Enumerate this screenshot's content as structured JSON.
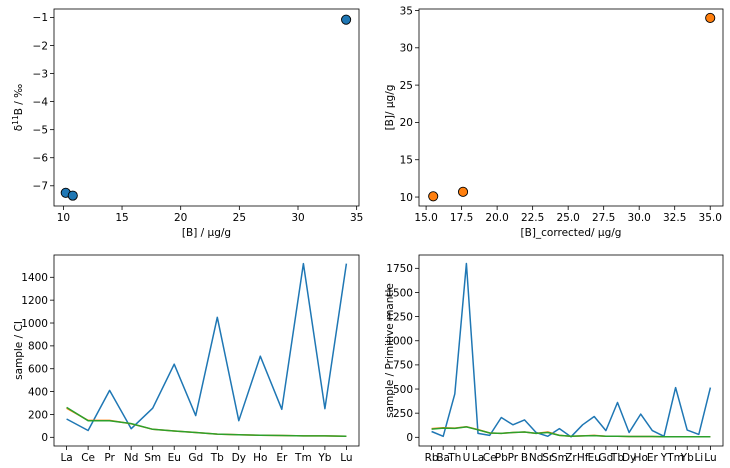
{
  "chart_data": [
    {
      "type": "scatter",
      "title": "",
      "xlabel": "[B] / μg/g",
      "ylabel": "δ11B / ‰",
      "ylabel_parts": [
        "δ",
        "11",
        "B / ‰"
      ],
      "xlim": [
        9.2,
        35.2
      ],
      "ylim": [
        -7.72,
        -0.7
      ],
      "xticks": [
        10,
        15,
        20,
        25,
        30,
        35
      ],
      "yticks": [
        -7,
        -6,
        -5,
        -4,
        -3,
        -2,
        -1
      ],
      "grid": false,
      "colors": {
        "marker": "#1f77b4"
      },
      "series": [
        {
          "x": [
            10.2,
            10.8,
            34.1
          ],
          "y": [
            -7.25,
            -7.35,
            -1.08
          ]
        }
      ]
    },
    {
      "type": "scatter",
      "title": "",
      "xlabel": "[B]_corrected/ μg/g",
      "ylabel": "[B]/ μg/g",
      "xlim": [
        14.5,
        35.9
      ],
      "ylim": [
        8.8,
        35.2
      ],
      "xticks": [
        15.0,
        17.5,
        20.0,
        22.5,
        25.0,
        27.5,
        30.0,
        32.5,
        35.0
      ],
      "yticks": [
        10,
        15,
        20,
        25,
        30,
        35
      ],
      "grid": false,
      "colors": {
        "marker": "#ff7f0e"
      },
      "series": [
        {
          "x": [
            15.5,
            17.6,
            35.0
          ],
          "y": [
            10.1,
            10.7,
            34.0
          ]
        }
      ]
    },
    {
      "type": "line",
      "title": "",
      "xlabel": "",
      "ylabel": "sample / CI",
      "categories": [
        "La",
        "Ce",
        "Pr",
        "Nd",
        "Sm",
        "Eu",
        "Gd",
        "Tb",
        "Dy",
        "Ho",
        "Er",
        "Tm",
        "Yb",
        "Lu"
      ],
      "ylim": [
        -76,
        1595
      ],
      "yticks": [
        0,
        200,
        400,
        600,
        800,
        1000,
        1200,
        1400
      ],
      "grid": false,
      "series": [
        {
          "color": "#1f77b4",
          "values": [
            160,
            60,
            410,
            75,
            255,
            640,
            190,
            1050,
            145,
            710,
            245,
            1520,
            250,
            1520
          ]
        },
        {
          "color": "#ff7f0e",
          "values": [
            255,
            148,
            148,
            118,
            70,
            55,
            42,
            28,
            22,
            18,
            16,
            12,
            12,
            10
          ]
        },
        {
          "color": "#2ca02c",
          "values": [
            262,
            145,
            145,
            120,
            70,
            55,
            42,
            28,
            22,
            18,
            16,
            12,
            12,
            10
          ]
        }
      ]
    },
    {
      "type": "line",
      "title": "",
      "xlabel": "",
      "ylabel": "sample / Primitive mantle",
      "categories": [
        "Rb",
        "Ba",
        "Th",
        "U",
        "La",
        "Ce",
        "Pb",
        "Pr",
        "B",
        "Nd",
        "Sr",
        "Sm",
        "Zr",
        "Hf",
        "Eu",
        "Gd",
        "Tb",
        "Dy",
        "Ho",
        "Er",
        "Y",
        "Tm",
        "Yb",
        "Li",
        "Lu"
      ],
      "ylim": [
        -90,
        1888
      ],
      "yticks": [
        0,
        250,
        500,
        750,
        1000,
        1250,
        1500,
        1750
      ],
      "grid": false,
      "series": [
        {
          "color": "#1f77b4",
          "values": [
            60,
            10,
            450,
            1800,
            40,
            20,
            205,
            130,
            180,
            50,
            10,
            90,
            5,
            130,
            215,
            70,
            360,
            50,
            240,
            70,
            10,
            515,
            75,
            30,
            515
          ]
        },
        {
          "color": "#ff7f0e",
          "values": [
            90,
            100,
            95,
            110,
            80,
            45,
            40,
            50,
            55,
            40,
            55,
            20,
            10,
            15,
            20,
            12,
            10,
            8,
            8,
            8,
            5,
            5,
            5,
            5,
            5
          ]
        },
        {
          "color": "#2ca02c",
          "values": [
            85,
            95,
            92,
            108,
            78,
            45,
            40,
            50,
            55,
            40,
            50,
            20,
            10,
            15,
            18,
            12,
            10,
            8,
            8,
            8,
            5,
            5,
            5,
            5,
            5
          ]
        }
      ]
    }
  ]
}
